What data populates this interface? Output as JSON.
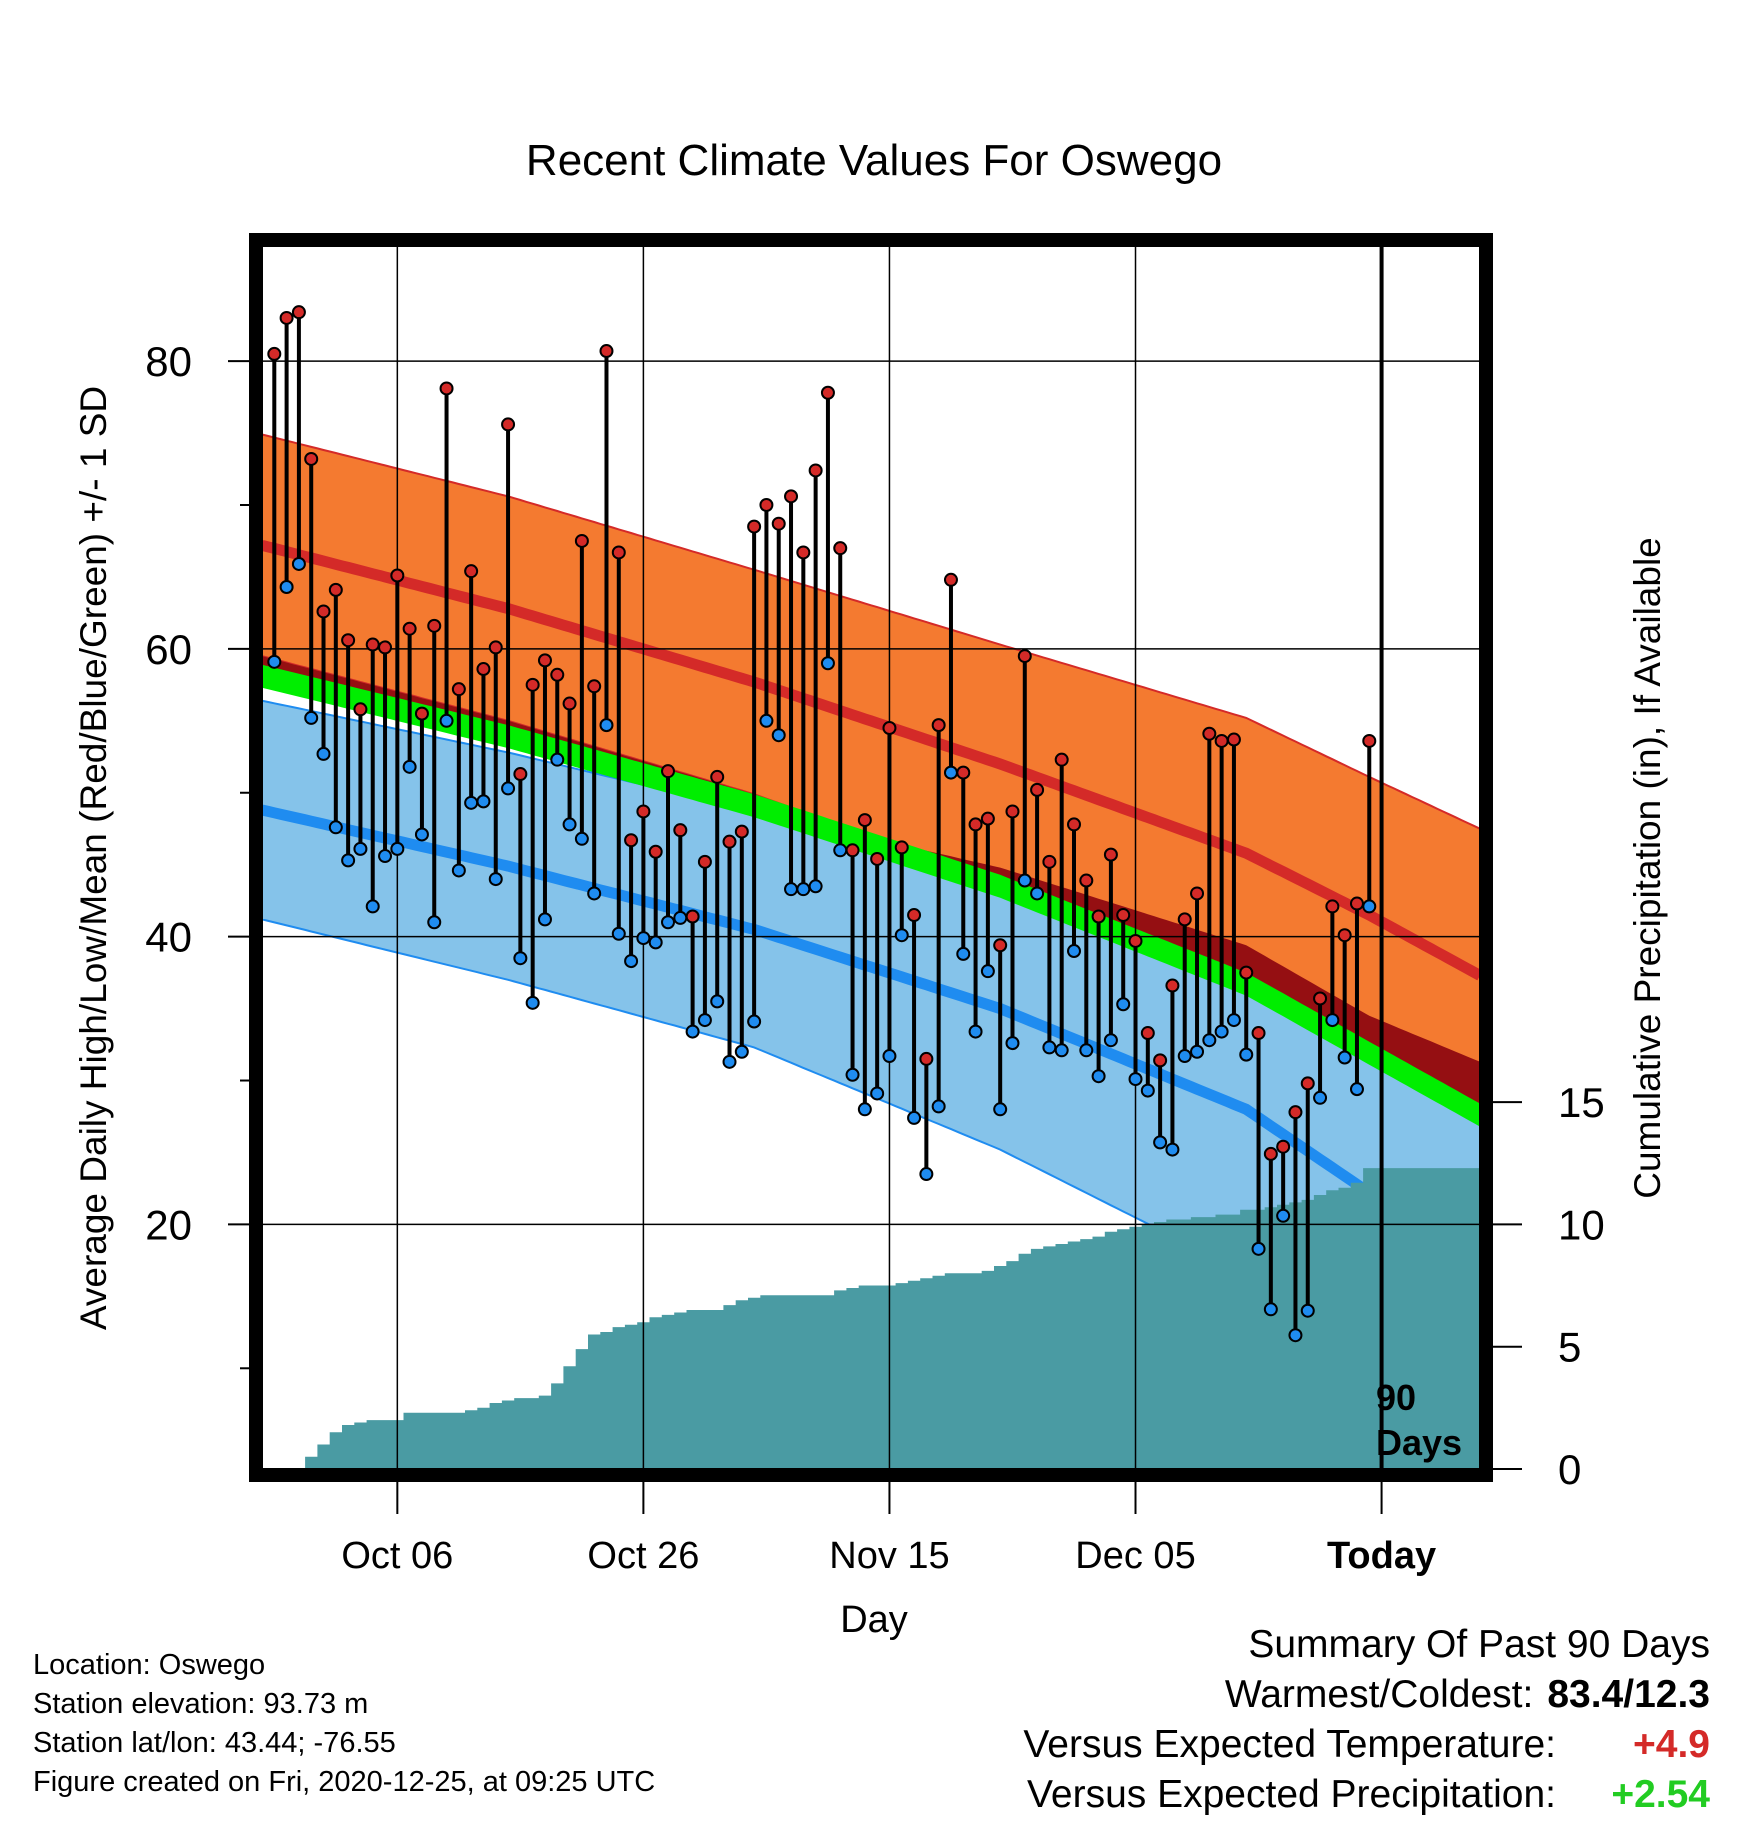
{
  "chart_data": {
    "type": "line",
    "title": "Recent Climate Values For Oswego",
    "xlabel": "Day",
    "ylabel_left": "Average Daily High/Low/Mean (Red/Blue/Green) +/- 1 SD",
    "ylabel_right": "Cumulative Precipitation (in), If Available",
    "x_ticks": [
      "Oct 06",
      "Oct 26",
      "Nov 15",
      "Dec 05",
      "Today"
    ],
    "y_ticks_left": [
      "20",
      "40",
      "60",
      "80"
    ],
    "y_ticks_right": [
      "0",
      "5",
      "10",
      "15"
    ],
    "ylim_left": [
      3,
      88
    ],
    "ylim_right": [
      0,
      50
    ],
    "xlim_days": [
      -90,
      9
    ],
    "grid": true,
    "annotation": "90\nDays",
    "colors": {
      "high_band": "#f47a30",
      "high_line": "#d42a28",
      "low_band": "#85c3ea",
      "low_line": "#1f8cf0",
      "mean_band": "#00ee00",
      "above_mean": "#950f12",
      "precip": "#4a9ba3",
      "high_dot": "#d42a28",
      "low_dot": "#1f8cf0",
      "positive_temp": "#d42a28",
      "positive_precip": "#22cc22"
    },
    "normal_high": [
      [
        -90,
        67.2
      ],
      [
        -70,
        62.8
      ],
      [
        -50,
        57.7
      ],
      [
        -30,
        52.0
      ],
      [
        -10,
        45.8
      ],
      [
        0,
        41.5
      ],
      [
        9,
        37.3
      ]
    ],
    "normal_high_sd": [
      [
        -90,
        7.7
      ],
      [
        -70,
        7.8
      ],
      [
        -50,
        7.8
      ],
      [
        -30,
        8.3
      ],
      [
        -10,
        9.4
      ],
      [
        0,
        9.6
      ],
      [
        9,
        10.2
      ]
    ],
    "normal_low": [
      [
        -90,
        48.8
      ],
      [
        -70,
        44.9
      ],
      [
        -50,
        40.5
      ],
      [
        -30,
        35.0
      ],
      [
        -10,
        28.0
      ],
      [
        0,
        22.2
      ],
      [
        9,
        17.8
      ]
    ],
    "normal_low_sd": [
      [
        -90,
        7.6
      ],
      [
        -70,
        7.9
      ],
      [
        -50,
        8.2
      ],
      [
        -30,
        9.8
      ],
      [
        -10,
        11.4
      ],
      [
        0,
        12.3
      ],
      [
        9,
        13.5
      ]
    ],
    "normal_mean": [
      [
        -90,
        58.1
      ],
      [
        -70,
        53.9
      ],
      [
        -50,
        49.1
      ],
      [
        -30,
        43.5
      ],
      [
        -10,
        36.7
      ],
      [
        0,
        31.9
      ],
      [
        9,
        27.6
      ]
    ],
    "series": [
      {
        "name": "High",
        "values": [
          80.5,
          83.0,
          83.4,
          73.2,
          62.6,
          64.1,
          60.6,
          55.8,
          60.3,
          60.1,
          65.1,
          61.4,
          55.5,
          61.6,
          78.1,
          57.2,
          65.4,
          58.6,
          60.1,
          75.6,
          51.3,
          57.5,
          59.2,
          58.2,
          56.2,
          67.5,
          57.4,
          80.7,
          66.7,
          46.7,
          48.7,
          45.9,
          51.5,
          47.4,
          41.4,
          45.2,
          51.1,
          46.6,
          47.3,
          68.5,
          70.0,
          68.7,
          70.6,
          66.7,
          72.4,
          77.8,
          67.0,
          46.0,
          48.1,
          45.4,
          54.5,
          46.2,
          41.5,
          31.5,
          54.7,
          64.8,
          51.4,
          47.8,
          48.2,
          39.4,
          48.7,
          59.5,
          50.2,
          45.2,
          52.3,
          47.8,
          43.9,
          41.4,
          45.7,
          41.5,
          39.7,
          33.3,
          31.4,
          36.6,
          41.2,
          43.0,
          54.1,
          53.6,
          53.7,
          37.5,
          33.3,
          24.9,
          25.4,
          27.8,
          29.8,
          35.7,
          42.1,
          40.1,
          42.3,
          53.6
        ]
      },
      {
        "name": "Low",
        "values": [
          59.1,
          64.3,
          65.9,
          55.2,
          52.7,
          47.6,
          45.3,
          46.1,
          42.1,
          45.6,
          46.1,
          51.8,
          47.1,
          41.0,
          55.0,
          44.6,
          49.3,
          49.4,
          44.0,
          50.3,
          38.5,
          35.4,
          41.2,
          52.3,
          47.8,
          46.8,
          43.0,
          54.7,
          40.2,
          38.3,
          39.9,
          39.6,
          41.0,
          41.3,
          33.4,
          34.2,
          35.5,
          31.3,
          32.0,
          34.1,
          55.0,
          54.0,
          43.3,
          43.3,
          43.5,
          59.0,
          46.0,
          30.4,
          28.0,
          29.1,
          31.7,
          40.1,
          27.4,
          23.5,
          28.2,
          51.4,
          38.8,
          33.4,
          37.6,
          28.0,
          32.6,
          43.9,
          43.0,
          32.3,
          32.1,
          39.0,
          32.1,
          30.3,
          32.8,
          35.3,
          30.1,
          29.3,
          25.7,
          25.2,
          31.7,
          32.0,
          32.8,
          33.4,
          34.2,
          31.8,
          18.3,
          14.1,
          20.6,
          12.3,
          14.0,
          28.8,
          34.2,
          31.6,
          29.4,
          42.1
        ]
      },
      {
        "name": "Cumulative Precipitation",
        "values": [
          0.0,
          0.0,
          0.0,
          0.5,
          1.0,
          1.5,
          1.8,
          1.9,
          2.0,
          2.0,
          2.0,
          2.3,
          2.3,
          2.3,
          2.3,
          2.3,
          2.4,
          2.5,
          2.7,
          2.8,
          2.9,
          2.9,
          3.0,
          3.5,
          4.2,
          4.9,
          5.5,
          5.6,
          5.8,
          5.9,
          6.0,
          6.2,
          6.3,
          6.4,
          6.5,
          6.5,
          6.5,
          6.7,
          6.9,
          7.0,
          7.1,
          7.1,
          7.1,
          7.1,
          7.1,
          7.1,
          7.3,
          7.4,
          7.5,
          7.5,
          7.5,
          7.6,
          7.7,
          7.8,
          7.9,
          8.0,
          8.0,
          8.0,
          8.1,
          8.3,
          8.5,
          8.8,
          9.0,
          9.1,
          9.2,
          9.3,
          9.4,
          9.5,
          9.7,
          9.8,
          9.9,
          10.0,
          10.1,
          10.2,
          10.2,
          10.3,
          10.3,
          10.4,
          10.4,
          10.6,
          10.6,
          10.7,
          10.8,
          10.9,
          11.0,
          11.2,
          11.4,
          11.5,
          11.7,
          12.3
        ]
      }
    ]
  },
  "footer": {
    "location": "Location: Oswego",
    "elevation": "Station elevation: 93.73 m",
    "latlon": "Station lat/lon: 43.44; -76.55",
    "created": "Figure created on Fri, 2020-12-25, at 09:25 UTC"
  },
  "summary": {
    "heading": "Summary Of Past 90 Days",
    "warmest_label": "Warmest/Coldest:",
    "warmest_value": "83.4/12.3",
    "temp_label": "Versus Expected Temperature:",
    "temp_value": "+4.9",
    "precip_label": "Versus Expected Precipitation:",
    "precip_value": "+2.54"
  }
}
